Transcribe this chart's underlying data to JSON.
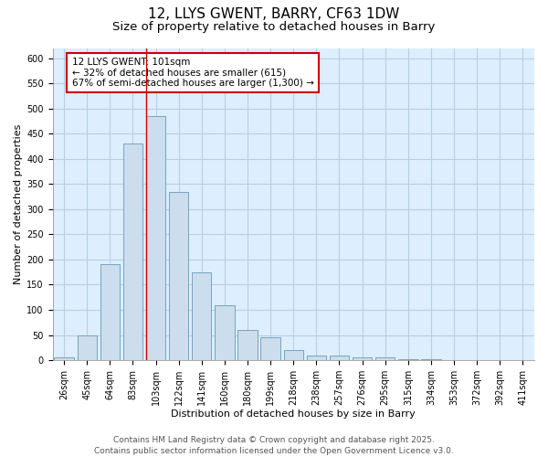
{
  "title_line1": "12, LLYS GWENT, BARRY, CF63 1DW",
  "title_line2": "Size of property relative to detached houses in Barry",
  "xlabel": "Distribution of detached houses by size in Barry",
  "ylabel": "Number of detached properties",
  "bar_labels": [
    "26sqm",
    "45sqm",
    "64sqm",
    "83sqm",
    "103sqm",
    "122sqm",
    "141sqm",
    "160sqm",
    "180sqm",
    "199sqm",
    "218sqm",
    "238sqm",
    "257sqm",
    "276sqm",
    "295sqm",
    "315sqm",
    "334sqm",
    "353sqm",
    "372sqm",
    "392sqm",
    "411sqm"
  ],
  "bar_values": [
    5,
    50,
    190,
    430,
    485,
    335,
    175,
    110,
    60,
    45,
    20,
    10,
    10,
    5,
    5,
    2,
    2,
    1,
    1,
    1,
    1
  ],
  "bar_color": "#ccdded",
  "bar_edge_color": "#6699bb",
  "vline_color": "#cc0000",
  "annotation_text": "12 LLYS GWENT: 101sqm\n← 32% of detached houses are smaller (615)\n67% of semi-detached houses are larger (1,300) →",
  "annotation_box_color": "#ffffff",
  "annotation_box_edge_color": "#cc0000",
  "ylim": [
    0,
    620
  ],
  "yticks": [
    0,
    50,
    100,
    150,
    200,
    250,
    300,
    350,
    400,
    450,
    500,
    550,
    600
  ],
  "grid_color": "#b8cfe0",
  "plot_bg_color": "#ddeeff",
  "footer_text": "Contains HM Land Registry data © Crown copyright and database right 2025.\nContains public sector information licensed under the Open Government Licence v3.0.",
  "title_fontsize": 11,
  "subtitle_fontsize": 9.5,
  "axis_label_fontsize": 8,
  "tick_fontsize": 7,
  "annotation_fontsize": 7.5,
  "footer_fontsize": 6.5
}
